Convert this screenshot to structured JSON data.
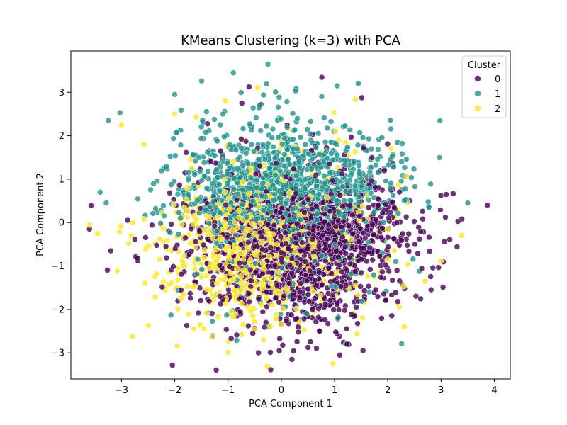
{
  "chart_data": {
    "type": "scatter",
    "title": "KMeans Clustering (k=3) with PCA",
    "xlabel": "PCA Component 1",
    "ylabel": "PCA Component 2",
    "xlim": [
      -3.95,
      4.3
    ],
    "ylim": [
      -3.6,
      3.95
    ],
    "x_ticks": [
      -3,
      -2,
      -1,
      0,
      1,
      2,
      3,
      4
    ],
    "y_ticks": [
      -3,
      -2,
      -1,
      0,
      1,
      2,
      3
    ],
    "grid": false,
    "legend": {
      "title": "Cluster",
      "position": "top-right",
      "entries": [
        "0",
        "1",
        "2"
      ]
    },
    "series": [
      {
        "name": "0",
        "color": "#440154",
        "marker_opacity": 0.8,
        "approx_center": [
          0.5,
          -0.9
        ],
        "notable_points": [
          [
            3.87,
            0.4
          ],
          [
            -3.6,
            -0.15
          ],
          [
            -3.2,
            -0.65
          ],
          [
            1.1,
            -3.05
          ],
          [
            0.2,
            -3.15
          ]
        ]
      },
      {
        "name": "1",
        "color": "#21918c",
        "marker_opacity": 0.8,
        "approx_center": [
          0.7,
          1.2
        ],
        "notable_points": [
          [
            -0.9,
            3.45
          ],
          [
            -0.25,
            3.65
          ],
          [
            -3.4,
            0.7
          ],
          [
            3.5,
            0.45
          ],
          [
            -3.25,
            2.35
          ],
          [
            1.05,
            3.15
          ],
          [
            -2.0,
            2.95
          ]
        ]
      },
      {
        "name": "2",
        "color": "#fde725",
        "marker_opacity": 0.8,
        "approx_center": [
          -0.9,
          -1.3
        ],
        "notable_points": [
          [
            0.97,
            -3.25
          ],
          [
            -3.6,
            -0.05
          ],
          [
            -3.45,
            -0.25
          ],
          [
            -1.05,
            2.8
          ],
          [
            -3.0,
            2.25
          ],
          [
            -2.0,
            2.5
          ],
          [
            2.7,
            -1.35
          ]
        ]
      }
    ]
  }
}
